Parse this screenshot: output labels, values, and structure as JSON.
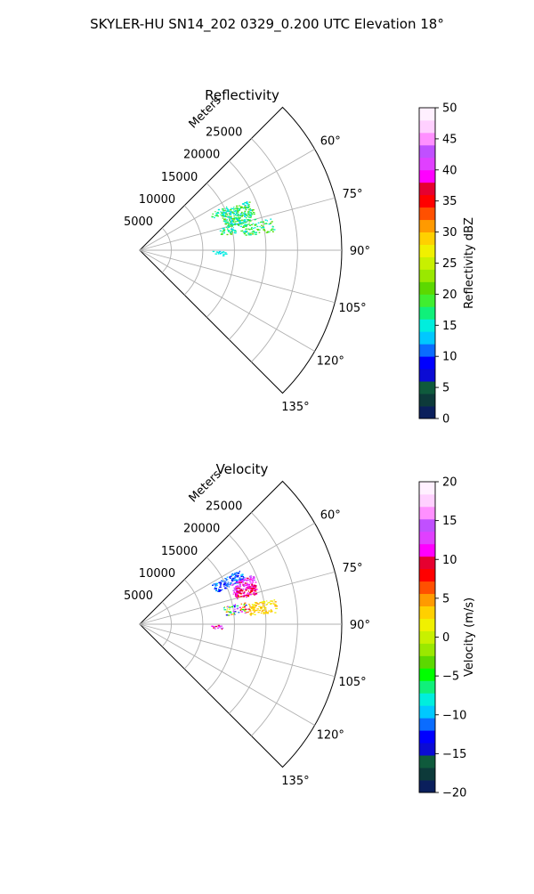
{
  "figure": {
    "title": "SKYLER-HU  SN14_202  0329_0.200 UTC Elevation 18°"
  },
  "chart_data": [
    {
      "type": "polar-sector-scatter",
      "title": "Reflectivity",
      "radial_label": "Meters",
      "radial_ticks": [
        5000,
        10000,
        15000,
        20000,
        25000
      ],
      "radial_tick_labels": [
        "5000",
        "10000",
        "15000",
        "20000",
        "25000"
      ],
      "r_max": 32000,
      "theta_range_deg": [
        45,
        135
      ],
      "theta_ticks_deg": [
        60,
        75,
        90,
        105,
        120,
        135
      ],
      "theta_tick_labels": [
        "60°",
        "75°",
        "90°",
        "105°",
        "120°",
        "135°"
      ],
      "grid": true,
      "colorbar": {
        "label": "Reflectivity dBZ",
        "range": [
          0,
          50
        ],
        "ticks": [
          0,
          5,
          10,
          15,
          20,
          25,
          30,
          35,
          40,
          45,
          50
        ],
        "tick_labels": [
          "0",
          "5",
          "10",
          "15",
          "20",
          "25",
          "30",
          "35",
          "40",
          "45",
          "50"
        ],
        "colors": [
          "#0a1f5c",
          "#0d3a3a",
          "#0f5a3c",
          "#0b0bd4",
          "#0000ff",
          "#0a6cff",
          "#00c8ff",
          "#00eedd",
          "#10f07a",
          "#40ee30",
          "#5cd800",
          "#9ae800",
          "#c8f000",
          "#f0f000",
          "#ffd000",
          "#ff9a00",
          "#ff5000",
          "#ff0000",
          "#e60030",
          "#ff00ff",
          "#e040ff",
          "#c050ff",
          "#ff90ff",
          "#ffd0ff",
          "#fff0ff"
        ]
      },
      "clusters": [
        {
          "theta_deg": 70,
          "r": 16500,
          "d_theta": 5,
          "d_r": 2500,
          "n": 260,
          "values": [
            12,
            22
          ],
          "mean": 18
        },
        {
          "theta_deg": 79,
          "r": 19000,
          "d_theta": 3,
          "d_r": 2500,
          "n": 90,
          "values": [
            14,
            22
          ],
          "mean": 19
        },
        {
          "theta_deg": 77,
          "r": 15500,
          "d_theta": 3,
          "d_r": 2500,
          "n": 70,
          "values": [
            13,
            21
          ],
          "mean": 17
        },
        {
          "theta_deg": 64,
          "r": 14000,
          "d_theta": 2,
          "d_r": 1500,
          "n": 30,
          "values": [
            14,
            20
          ],
          "mean": 17
        },
        {
          "theta_deg": 92,
          "r": 12500,
          "d_theta": 1.5,
          "d_r": 1200,
          "n": 18,
          "values": [
            13,
            16
          ],
          "mean": 14
        }
      ]
    },
    {
      "type": "polar-sector-scatter",
      "title": "Velocity",
      "radial_label": "Meters",
      "radial_ticks": [
        5000,
        10000,
        15000,
        20000,
        25000
      ],
      "radial_tick_labels": [
        "5000",
        "10000",
        "15000",
        "20000",
        "25000"
      ],
      "r_max": 32000,
      "theta_range_deg": [
        45,
        135
      ],
      "theta_ticks_deg": [
        60,
        75,
        90,
        105,
        120,
        135
      ],
      "theta_tick_labels": [
        "60°",
        "75°",
        "90°",
        "105°",
        "120°",
        "135°"
      ],
      "grid": true,
      "colorbar": {
        "label": "Velocity (m/s)",
        "range": [
          -20,
          20
        ],
        "ticks": [
          -20,
          -15,
          -10,
          -5,
          0,
          5,
          10,
          15,
          20
        ],
        "tick_labels": [
          "−20",
          "−15",
          "−10",
          "−5",
          "0",
          "5",
          "10",
          "15",
          "20"
        ],
        "colors": [
          "#0a1f5c",
          "#0d3a3a",
          "#0f5a3c",
          "#0b0bd4",
          "#0000ff",
          "#0a6cff",
          "#00c8ff",
          "#00eedd",
          "#10f07a",
          "#00ff00",
          "#5cd800",
          "#9ae800",
          "#c8f000",
          "#f0f000",
          "#ffd000",
          "#ff9a00",
          "#ff5000",
          "#ff0000",
          "#e60030",
          "#ff00ff",
          "#e040ff",
          "#c050ff",
          "#ff90ff",
          "#ffd0ff",
          "#fff0ff"
        ]
      },
      "clusters": [
        {
          "theta_deg": 64,
          "r": 15500,
          "d_theta": 3,
          "d_r": 2500,
          "n": 120,
          "values": [
            -13,
            -10
          ],
          "mean": -12
        },
        {
          "theta_deg": 69,
          "r": 17500,
          "d_theta": 3,
          "d_r": 2000,
          "n": 140,
          "values": [
            9,
            16
          ],
          "mean": 13
        },
        {
          "theta_deg": 73,
          "r": 17500,
          "d_theta": 2.5,
          "d_r": 1800,
          "n": 110,
          "values": [
            8,
            12
          ],
          "mean": 10
        },
        {
          "theta_deg": 82,
          "r": 19500,
          "d_theta": 3,
          "d_r": 2200,
          "n": 100,
          "values": [
            1,
            5
          ],
          "mean": 3
        },
        {
          "theta_deg": 81,
          "r": 15500,
          "d_theta": 3,
          "d_r": 2000,
          "n": 60,
          "values": [
            -14,
            14
          ],
          "mean": 0
        },
        {
          "theta_deg": 92,
          "r": 12000,
          "d_theta": 1.5,
          "d_r": 1200,
          "n": 16,
          "values": [
            10,
            14
          ],
          "mean": 12
        }
      ]
    }
  ]
}
